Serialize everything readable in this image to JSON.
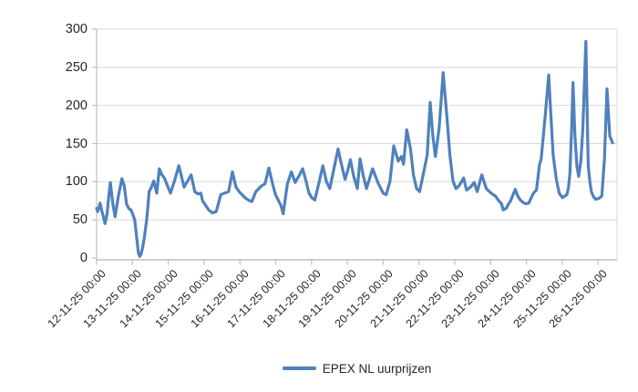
{
  "figure": {
    "background": "#FFFFFF",
    "colors": {
      "series_line": "#4F81BD",
      "gridline": "#D9D9D9",
      "axis_line": "#BFBFBF",
      "text": "#262626"
    }
  },
  "chart_data": {
    "type": "line",
    "title": "",
    "grid": true,
    "legend_position": "bottom-center",
    "y_axis": {
      "min": 0,
      "max": 300,
      "tick_step": 50,
      "ticks": [
        0,
        50,
        100,
        150,
        200,
        250,
        300
      ]
    },
    "x_axis": {
      "tick_labels": [
        "12-11-25 00:00",
        "13-11-25 00:00",
        "14-11-25 00:00",
        "15-11-25 00:00",
        "16-11-25 00:00",
        "17-11-25 00:00",
        "18-11-25 00:00",
        "19-11-25 00:00",
        "20-11-25 00:00",
        "21-11-25 00:00",
        "22-11-25 00:00",
        "23-11-25 00:00",
        "24-11-25 00:00",
        "25-11-25 00:00",
        "26-11-25 00:00"
      ],
      "tick_hours": [
        0,
        24,
        48,
        72,
        96,
        120,
        144,
        168,
        192,
        216,
        240,
        264,
        288,
        312,
        336
      ],
      "range_hours": [
        0,
        348.7
      ],
      "label_rotation_deg": 45
    },
    "series": [
      {
        "name": "EPEX NL uurprijzen",
        "color": "#4F81BD",
        "points_hour_value": [
          [
            0,
            65
          ],
          [
            0.8,
            61
          ],
          [
            2.3,
            72
          ],
          [
            3.5,
            62
          ],
          [
            5.7,
            45
          ],
          [
            7,
            58
          ],
          [
            8,
            78
          ],
          [
            9.2,
            99
          ],
          [
            10.8,
            72
          ],
          [
            12.4,
            54
          ],
          [
            14.5,
            80
          ],
          [
            16.9,
            104
          ],
          [
            18.5,
            95
          ],
          [
            20,
            71
          ],
          [
            21.5,
            65
          ],
          [
            23,
            63
          ],
          [
            24.5,
            56
          ],
          [
            25.5,
            50
          ],
          [
            26.5,
            33
          ],
          [
            28,
            6
          ],
          [
            28.9,
            2
          ],
          [
            29.8,
            5
          ],
          [
            30.8,
            13
          ],
          [
            32,
            27
          ],
          [
            33.5,
            50
          ],
          [
            34.5,
            70
          ],
          [
            35.2,
            87
          ],
          [
            36.5,
            92
          ],
          [
            38.3,
            101
          ],
          [
            40.3,
            85
          ],
          [
            42,
            117
          ],
          [
            43.5,
            110
          ],
          [
            45.4,
            105
          ],
          [
            47.4,
            95
          ],
          [
            49.5,
            85
          ],
          [
            52,
            100
          ],
          [
            55.1,
            121
          ],
          [
            58.6,
            93
          ],
          [
            61,
            101
          ],
          [
            63.3,
            109
          ],
          [
            65.8,
            87
          ],
          [
            67.8,
            84
          ],
          [
            69.8,
            85
          ],
          [
            71,
            75
          ],
          [
            73.1,
            69
          ],
          [
            75.1,
            63
          ],
          [
            77.6,
            59
          ],
          [
            80.2,
            61
          ],
          [
            83.2,
            83
          ],
          [
            85.5,
            85
          ],
          [
            88.4,
            87
          ],
          [
            91,
            113
          ],
          [
            93.4,
            93
          ],
          [
            95.5,
            87
          ],
          [
            97.5,
            83
          ],
          [
            99.5,
            79
          ],
          [
            102.6,
            75
          ],
          [
            104,
            74
          ],
          [
            106.7,
            87
          ],
          [
            108.7,
            91
          ],
          [
            110.7,
            95
          ],
          [
            112.8,
            97
          ],
          [
            115.4,
            118
          ],
          [
            117.9,
            97
          ],
          [
            119.9,
            83
          ],
          [
            120.9,
            79
          ],
          [
            123.5,
            69
          ],
          [
            125,
            58
          ],
          [
            127.8,
            97
          ],
          [
            130.5,
            113
          ],
          [
            133,
            99
          ],
          [
            136,
            109
          ],
          [
            138,
            117
          ],
          [
            140.6,
            99
          ],
          [
            142.3,
            85
          ],
          [
            144.2,
            79
          ],
          [
            146.2,
            76
          ],
          [
            149,
            99
          ],
          [
            151.6,
            121
          ],
          [
            154,
            100
          ],
          [
            156.3,
            91
          ],
          [
            158.8,
            115
          ],
          [
            161.8,
            143
          ],
          [
            164,
            123
          ],
          [
            166.5,
            103
          ],
          [
            168.3,
            115
          ],
          [
            170,
            129
          ],
          [
            172.3,
            107
          ],
          [
            174.7,
            91
          ],
          [
            176.5,
            130
          ],
          [
            178.6,
            108
          ],
          [
            180.8,
            91
          ],
          [
            184.9,
            117
          ],
          [
            188.9,
            97
          ],
          [
            192,
            85
          ],
          [
            194,
            83
          ],
          [
            196.5,
            100
          ],
          [
            199.1,
            147
          ],
          [
            202.1,
            127
          ],
          [
            204.2,
            133
          ],
          [
            205.6,
            123
          ],
          [
            207.8,
            168
          ],
          [
            210.3,
            143
          ],
          [
            212.3,
            109
          ],
          [
            214.4,
            91
          ],
          [
            216.4,
            87
          ],
          [
            219.4,
            115
          ],
          [
            221.5,
            135
          ],
          [
            223.5,
            204
          ],
          [
            225.3,
            160
          ],
          [
            227,
            133
          ],
          [
            229.5,
            170
          ],
          [
            232.2,
            243
          ],
          [
            234.7,
            186
          ],
          [
            236.7,
            135
          ],
          [
            238.8,
            101
          ],
          [
            240.8,
            91
          ],
          [
            243,
            95
          ],
          [
            245.9,
            105
          ],
          [
            247.9,
            89
          ],
          [
            250.5,
            93
          ],
          [
            253,
            99
          ],
          [
            255,
            87
          ],
          [
            258.1,
            109
          ],
          [
            261.1,
            91
          ],
          [
            263.2,
            87
          ],
          [
            265,
            84
          ],
          [
            267.3,
            81
          ],
          [
            269.5,
            75
          ],
          [
            271.3,
            71
          ],
          [
            272.4,
            63
          ],
          [
            274.4,
            65
          ],
          [
            275.8,
            70
          ],
          [
            277.4,
            75
          ],
          [
            279,
            83
          ],
          [
            280.5,
            90
          ],
          [
            282,
            82
          ],
          [
            283.5,
            77
          ],
          [
            285.6,
            73
          ],
          [
            287.5,
            71
          ],
          [
            289.6,
            72
          ],
          [
            291,
            78
          ],
          [
            292.7,
            85
          ],
          [
            294.7,
            89
          ],
          [
            296.8,
            123
          ],
          [
            297.8,
            129
          ],
          [
            300.5,
            185
          ],
          [
            302.9,
            240
          ],
          [
            304.3,
            190
          ],
          [
            305.9,
            135
          ],
          [
            308,
            103
          ],
          [
            310,
            85
          ],
          [
            312.1,
            79
          ],
          [
            313.5,
            81
          ],
          [
            315.1,
            83
          ],
          [
            316.2,
            93
          ],
          [
            317.1,
            111
          ],
          [
            318.3,
            170
          ],
          [
            319.2,
            230
          ],
          [
            320.5,
            160
          ],
          [
            321.8,
            120
          ],
          [
            323,
            107
          ],
          [
            324.5,
            128
          ],
          [
            325.8,
            170
          ],
          [
            327,
            240
          ],
          [
            327.8,
            284
          ],
          [
            328.8,
            180
          ],
          [
            329.4,
            121
          ],
          [
            330.5,
            100
          ],
          [
            331.5,
            87
          ],
          [
            333,
            80
          ],
          [
            334.5,
            77
          ],
          [
            336.5,
            78
          ],
          [
            338.5,
            81
          ],
          [
            340.3,
            130
          ],
          [
            342,
            222
          ],
          [
            343.8,
            160
          ],
          [
            345.7,
            151
          ]
        ]
      }
    ]
  }
}
